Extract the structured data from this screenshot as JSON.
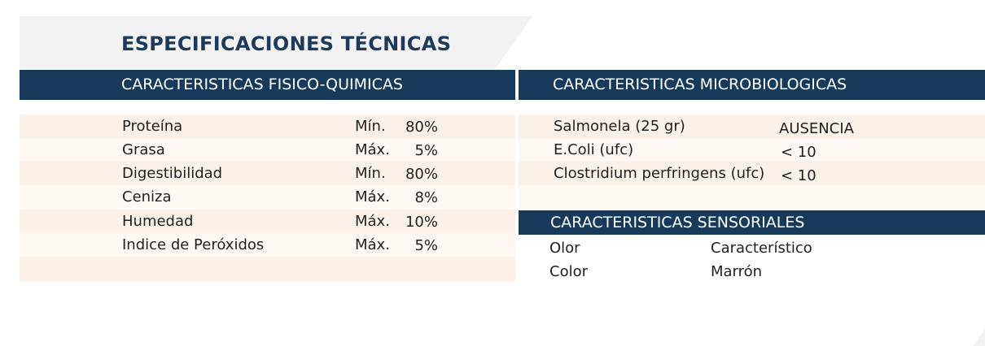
{
  "title": "ESPECIFICACIONES TÉCNICAS",
  "fisico_quimicas": {
    "heading": "CARACTERISTICAS FISICO-QUIMICAS",
    "rows": [
      {
        "name": "Proteína",
        "qualifier": "Mín.",
        "value": "80%"
      },
      {
        "name": "Grasa",
        "qualifier": "Máx.",
        "value": "5%"
      },
      {
        "name": "Digestibilidad",
        "qualifier": "Mín.",
        "value": "80%"
      },
      {
        "name": "Ceniza",
        "qualifier": "Máx.",
        "value": "8%"
      },
      {
        "name": "Humedad",
        "qualifier": "Máx.",
        "value": "10%"
      },
      {
        "name": "Indice de Peróxidos",
        "qualifier": "Máx.",
        "value": "5%"
      }
    ]
  },
  "microbiologicas": {
    "heading": "CARACTERISTICAS MICROBIOLOGICAS",
    "rows": [
      {
        "name": "Salmonela (25 gr)",
        "value": "AUSENCIA"
      },
      {
        "name": "E.Coli (ufc)",
        "value": "< 10"
      },
      {
        "name": "Clostridium perfringens (ufc)",
        "value": "< 10"
      }
    ]
  },
  "sensoriales": {
    "heading": "CARACTERISTICAS SENSORIALES",
    "rows": [
      {
        "name": "Olor",
        "value": "Característico"
      },
      {
        "name": "Color",
        "value": "Marrón"
      }
    ]
  },
  "colors": {
    "header_bg": "#17395c",
    "title_color": "#1b3a5c",
    "row_tint_a": "#fcf1e9",
    "row_tint_b": "#fef8f4"
  }
}
